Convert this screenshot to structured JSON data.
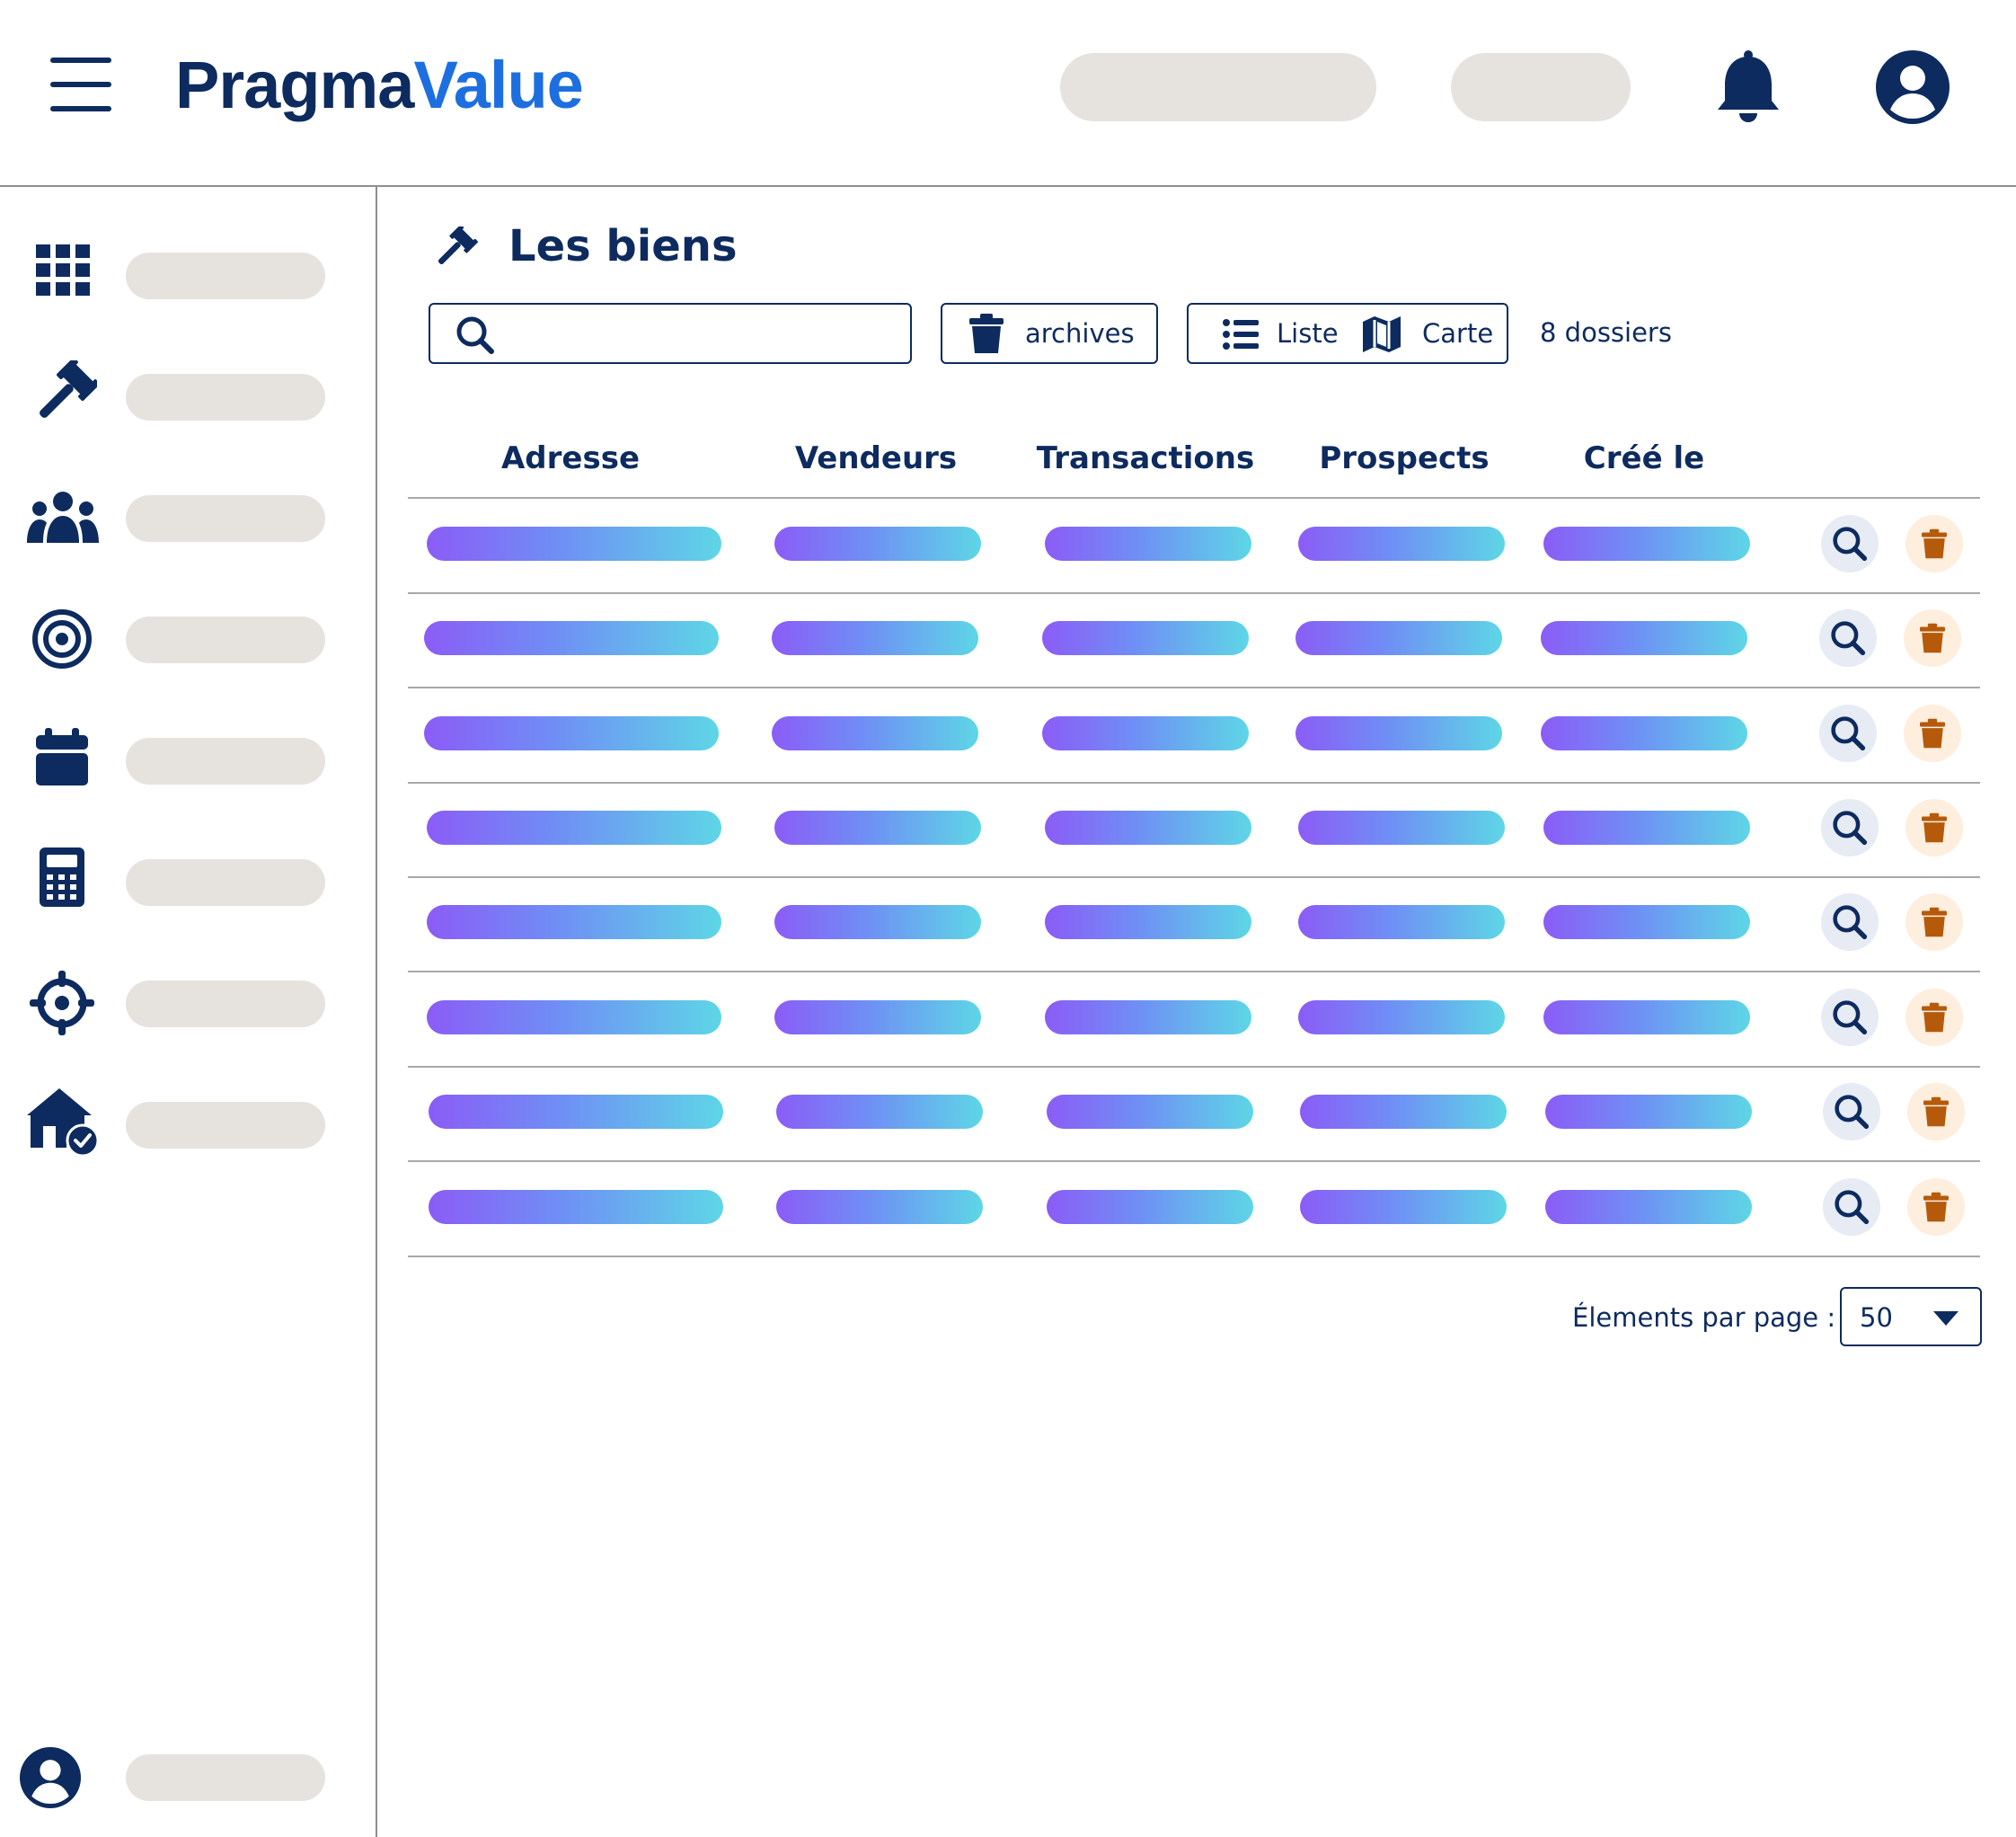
{
  "header": {
    "logo_part1": "Pragma",
    "logo_part2": "Value",
    "brand_dark": "#0d2b5e",
    "brand_blue": "#1d6fe0"
  },
  "sidebar": {
    "items": [
      {
        "icon": "grid-icon"
      },
      {
        "icon": "gavel-icon"
      },
      {
        "icon": "users-icon"
      },
      {
        "icon": "target-icon"
      },
      {
        "icon": "calendar-icon"
      },
      {
        "icon": "calculator-icon"
      },
      {
        "icon": "crosshair-icon"
      },
      {
        "icon": "house-check-icon"
      }
    ],
    "footer_icon": "user-circle-icon"
  },
  "page": {
    "title": "Les biens",
    "title_icon": "gavel-icon"
  },
  "toolbar": {
    "search_placeholder": "",
    "archives_label": "archives",
    "list_label": "Liste",
    "map_label": "Carte",
    "count_label": "8 dossiers"
  },
  "table": {
    "columns": [
      "Adresse",
      "Vendeurs",
      "Transactions",
      "Prospects",
      "Créé le"
    ],
    "row_count": 8
  },
  "pagination": {
    "per_page_label": "Élements par page :",
    "per_page_value": "50",
    "per_page_options": [
      "50"
    ]
  },
  "colors": {
    "skeleton_start": "#8b5cf6",
    "skeleton_end": "#5ed6e6",
    "delete_accent": "#b55a0b",
    "placeholder_gray": "#e6e3df"
  }
}
